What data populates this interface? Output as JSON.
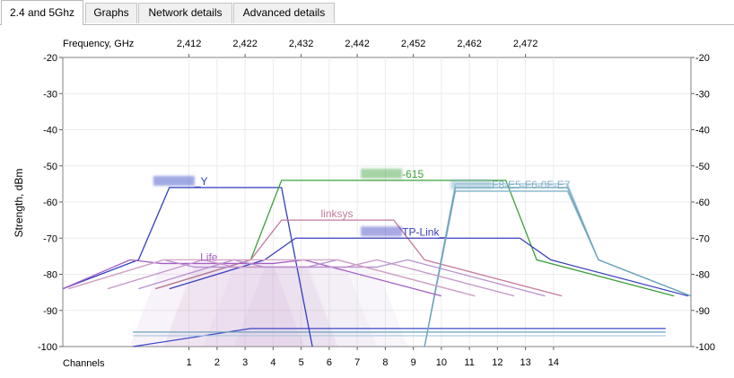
{
  "tabs": [
    {
      "label": "2.4 and 5Ghz",
      "active": true
    },
    {
      "label": "Graphs",
      "active": false
    },
    {
      "label": "Network details",
      "active": false
    },
    {
      "label": "Advanced details",
      "active": false
    }
  ],
  "chart_data": {
    "type": "area",
    "ylabel": "Strength, dBm",
    "ylim": [
      -100,
      -20
    ],
    "yticks": [
      -20,
      -30,
      -40,
      -50,
      -60,
      -70,
      -80,
      -90,
      -100
    ],
    "top_axis_label": "Frequency, GHz",
    "frequency_ticks": [
      {
        "label": "2,412",
        "channel": 1
      },
      {
        "label": "2,422",
        "channel": 3
      },
      {
        "label": "2,432",
        "channel": 5
      },
      {
        "label": "2,442",
        "channel": 7
      },
      {
        "label": "2,452",
        "channel": 9
      },
      {
        "label": "2,462",
        "channel": 11
      },
      {
        "label": "2,472",
        "channel": 13
      }
    ],
    "bottom_axis_label": "Channels",
    "channel_ticks": [
      1,
      2,
      3,
      4,
      5,
      6,
      7,
      8,
      9,
      10,
      11,
      12,
      13,
      14
    ],
    "grid": true,
    "series": [
      {
        "name": "_Y",
        "color": "#2e3fc2",
        "channel": 2.3,
        "width": 4,
        "peak": -56,
        "lead": "left",
        "label_channel": 1.2,
        "blurred": true
      },
      {
        "name": "-615",
        "color": "#3c9f3c",
        "channel": 8.3,
        "width": 8,
        "peak": -54,
        "lead": "both",
        "label_channel": 8.6,
        "blurred": true
      },
      {
        "name": "linksys",
        "color": "#c47a9e",
        "channel": 6.3,
        "width": 4,
        "peak": -65,
        "lead": "both",
        "label_channel": 5.7,
        "blurred": false
      },
      {
        "name": "TP-Link_",
        "color": "#3b3fbf",
        "channel": 8.8,
        "width": 8,
        "peak": -70,
        "lead": "both",
        "label_channel": 8.6,
        "blurred": true
      },
      {
        "name": "F8-E5-F6-0F-E7",
        "color": "#7fb2c8",
        "channel": 12.5,
        "width": 4,
        "peak": -57,
        "lead": "right",
        "label_channel": 11.8,
        "blurred": true
      },
      {
        "name": "",
        "color": "#a9c6dc",
        "channel": 12.5,
        "width": 4,
        "peak": -55,
        "lead": "right",
        "label_channel": 12.6,
        "blurred": true
      },
      {
        "name": "",
        "color": "#6aa2b8",
        "channel": 12.5,
        "width": 4,
        "peak": -56,
        "lead": "right",
        "label_channel": 12.6,
        "blurred": true
      },
      {
        "name": "Life",
        "color": "#a35ec4",
        "channel": 2.0,
        "width": 4,
        "peak": -77,
        "lead": "both",
        "label_channel": 1.4,
        "blurred": false
      },
      {
        "name": "",
        "color": "#b48ad2",
        "channel": 3.2,
        "width": 4,
        "peak": -78,
        "lead": "both",
        "label_channel": 2.6,
        "blurred": true
      },
      {
        "name": "",
        "color": "#c495c8",
        "channel": 4.6,
        "width": 4,
        "peak": -78,
        "lead": "both",
        "label_channel": 4.0,
        "blurred": true
      },
      {
        "name": "",
        "color": "#b78fd0",
        "channel": 5.7,
        "width": 4,
        "peak": -78,
        "lead": "both",
        "label_channel": 5.2,
        "blurred": true
      },
      {
        "name": "",
        "color": "#d3a3c3",
        "channel": 3.2,
        "width": 4,
        "peak": -76,
        "lead": "both",
        "label_channel": 3.0,
        "blurred": true
      }
    ],
    "background_lines": [
      {
        "color": "#3c49c8",
        "points": [
          [
            -1,
            -100
          ],
          [
            3.2,
            -95
          ],
          [
            7.4,
            -95
          ],
          [
            14,
            -95
          ],
          [
            18,
            -95
          ]
        ]
      },
      {
        "color": "#6aa2b8",
        "points": [
          [
            -1,
            -96
          ],
          [
            18,
            -96
          ]
        ]
      },
      {
        "color": "#a9c6dc",
        "points": [
          [
            -1,
            -97
          ],
          [
            18,
            -97
          ]
        ]
      }
    ]
  }
}
